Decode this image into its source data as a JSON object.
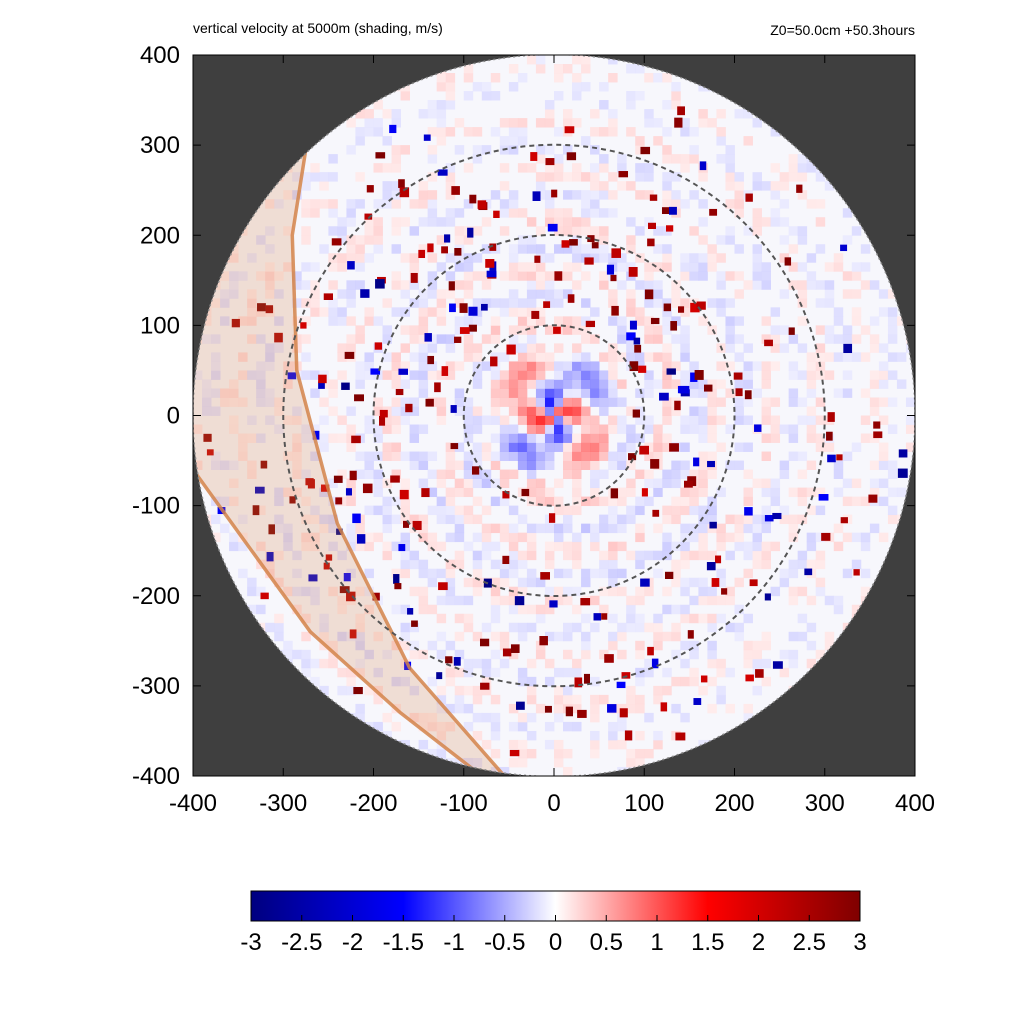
{
  "chart_data": {
    "type": "heatmap",
    "title": "vertical velocity at 5000m (shading, m/s)",
    "subtitle": "Z0=50.0cm  +50.3hours",
    "xlim": [
      -400,
      400
    ],
    "ylim": [
      -400,
      400
    ],
    "x_ticks": [
      "-400",
      "-300",
      "-200",
      "-100",
      "0",
      "100",
      "200",
      "300",
      "400"
    ],
    "y_ticks": [
      "400",
      "300",
      "200",
      "100",
      "0",
      "-100",
      "-200",
      "-300",
      "-400"
    ],
    "x_tick_values": [
      -400,
      -300,
      -200,
      -100,
      0,
      100,
      200,
      300,
      400
    ],
    "y_tick_values": [
      400,
      300,
      200,
      100,
      0,
      -100,
      -200,
      -300,
      -400
    ],
    "domain_radius": 400,
    "range_rings": [
      100,
      200,
      300
    ],
    "background_color": "#3f3f3f",
    "overlay_color": "#d4844a",
    "colorbar": {
      "ticks": [
        "-3",
        "-2.5",
        "-2",
        "-1.5",
        "-1",
        "-0.5",
        "0",
        "0.5",
        "1",
        "1.5",
        "2",
        "2.5",
        "3"
      ],
      "tick_values": [
        -3,
        -2.5,
        -2,
        -1.5,
        -1,
        -0.5,
        0,
        0.5,
        1,
        1.5,
        2,
        2.5,
        3
      ],
      "colors": [
        "#00007f",
        "#0000ff",
        "#ffffff",
        "#ff0000",
        "#7f0000"
      ]
    }
  }
}
